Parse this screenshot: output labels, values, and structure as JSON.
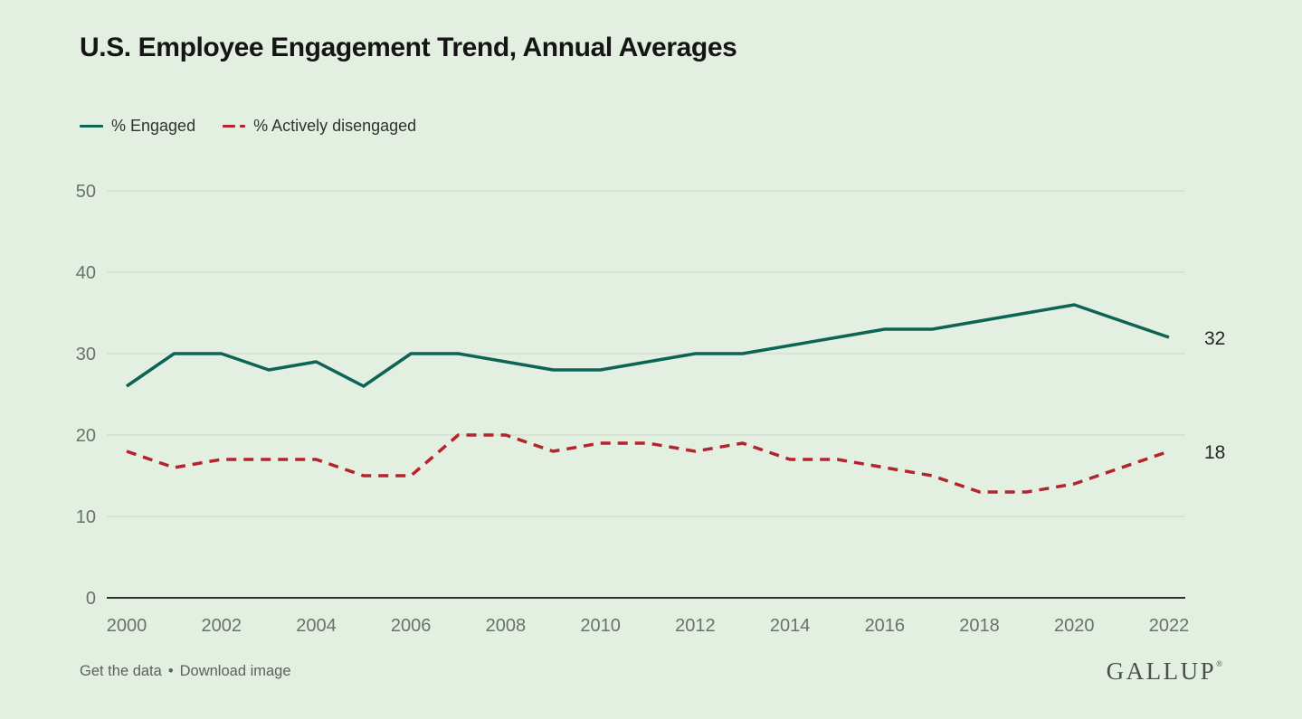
{
  "title": "U.S. Employee Engagement Trend, Annual Averages",
  "footer": {
    "get_data_label": "Get the data",
    "separator": "•",
    "download_label": "Download image",
    "logo": "GALLUP",
    "logo_mark": "®"
  },
  "colors": {
    "background": "#e2efe1",
    "grid": "#ccd9cb",
    "axis": "#2f332f",
    "tick_text": "#6a716a",
    "engaged": "#0d6455",
    "actively_disengaged": "#b3242e"
  },
  "chart_data": {
    "type": "line",
    "title": "U.S. Employee Engagement Trend, Annual Averages",
    "x": [
      2000,
      2001,
      2002,
      2003,
      2004,
      2005,
      2006,
      2007,
      2008,
      2009,
      2010,
      2011,
      2012,
      2013,
      2014,
      2015,
      2016,
      2017,
      2018,
      2019,
      2020,
      2021,
      2022
    ],
    "series": [
      {
        "name": "% Engaged",
        "slug": "engaged",
        "color": "#0d6455",
        "dashed": false,
        "end_label": "32",
        "values": [
          26,
          30,
          30,
          28,
          29,
          26,
          30,
          30,
          29,
          28,
          28,
          29,
          30,
          30,
          31,
          32,
          33,
          33,
          34,
          35,
          36,
          34,
          32
        ]
      },
      {
        "name": "% Actively disengaged",
        "slug": "actively-disengaged",
        "color": "#b3242e",
        "dashed": true,
        "end_label": "18",
        "values": [
          18,
          16,
          17,
          17,
          17,
          15,
          15,
          20,
          20,
          18,
          19,
          19,
          18,
          19,
          17,
          17,
          16,
          15,
          13,
          13,
          14,
          16,
          18
        ]
      }
    ],
    "xticks": [
      2000,
      2002,
      2004,
      2006,
      2008,
      2010,
      2012,
      2014,
      2016,
      2018,
      2020,
      2022
    ],
    "yticks": [
      0,
      10,
      20,
      30,
      40,
      50
    ],
    "ylim": [
      0,
      50
    ],
    "grid": "horizontal",
    "legend_position": "top-left"
  }
}
